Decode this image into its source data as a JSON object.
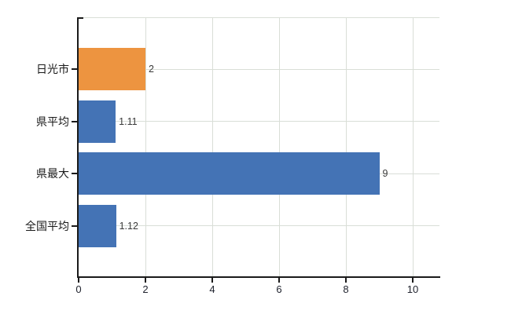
{
  "chart_data": {
    "type": "bar",
    "orientation": "horizontal",
    "title": "",
    "xlabel": "",
    "ylabel": "",
    "categories": [
      "日光市",
      "県平均",
      "県最大",
      "全国平均"
    ],
    "values": [
      2,
      1.11,
      9,
      1.12
    ],
    "value_labels": [
      "2",
      "1.11",
      "9",
      "1.12"
    ],
    "bar_colors": [
      "#ed9440",
      "#4473b5",
      "#4473b5",
      "#4473b5"
    ],
    "x_ticks": [
      0,
      2,
      4,
      6,
      8,
      10
    ],
    "x_tick_labels": [
      "0",
      "2",
      "4",
      "6",
      "8",
      "10"
    ],
    "xlim": [
      0,
      10.8
    ],
    "grid": true,
    "legend": "none",
    "highlight_bar_color": "#ed9440",
    "default_bar_color": "#4473b5"
  },
  "colors": {
    "background": "#ffffff",
    "axis": "#1a1a1a",
    "gridline": "#d9ded7",
    "category_label": "#1a1a1a",
    "tick_label": "#20232e",
    "value_label": "#3a3a3a"
  }
}
